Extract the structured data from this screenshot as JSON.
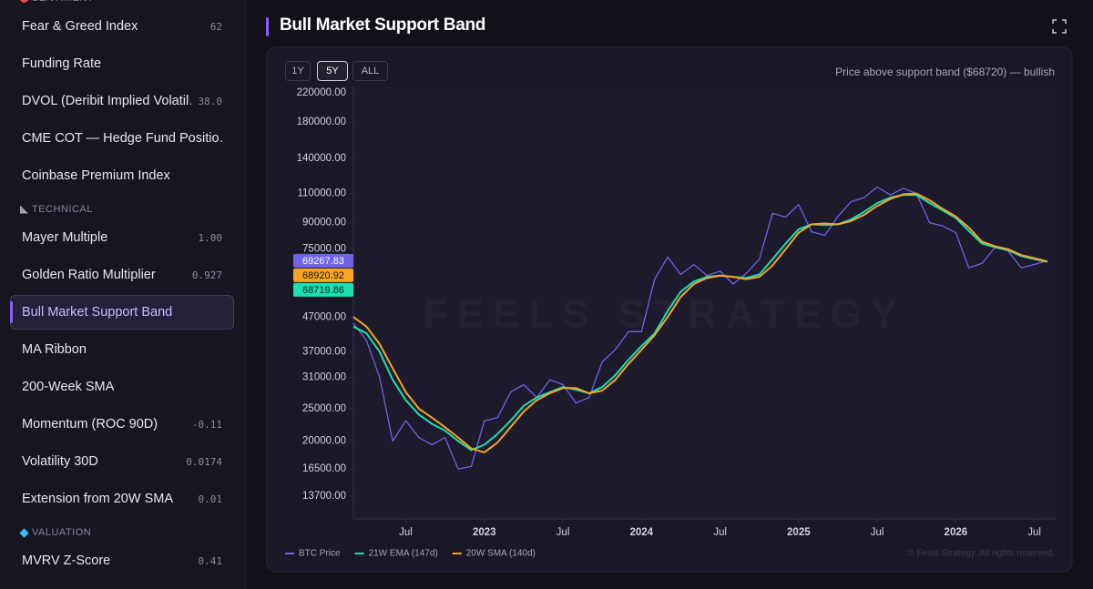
{
  "sidebar": {
    "sections": [
      {
        "title": "SENTIMENT",
        "items": [
          {
            "label": "Fear & Greed Index",
            "value": "62"
          },
          {
            "label": "Funding Rate"
          },
          {
            "label": "DVOL (Deribit Implied Volatil…",
            "value": "38.0"
          },
          {
            "label": "CME COT — Hedge Fund Positio…"
          },
          {
            "label": "Coinbase Premium Index"
          }
        ]
      },
      {
        "title": "TECHNICAL",
        "items": [
          {
            "label": "Mayer Multiple",
            "value": "1.00"
          },
          {
            "label": "Golden Ratio Multiplier",
            "value": "0.927"
          },
          {
            "label": "Bull Market Support Band",
            "active": true
          },
          {
            "label": "MA Ribbon"
          },
          {
            "label": "200-Week SMA"
          },
          {
            "label": "Momentum (ROC 90D)",
            "value": "-0.11"
          },
          {
            "label": "Volatility 30D",
            "value": "0.0174"
          },
          {
            "label": "Extension from 20W SMA",
            "value": "0.01"
          }
        ]
      },
      {
        "title": "VALUATION",
        "items": [
          {
            "label": "MVRV Z-Score",
            "value": "0.41"
          }
        ]
      }
    ]
  },
  "header": {
    "title": "Bull Market Support Band"
  },
  "controls": {
    "ranges": [
      "1Y",
      "5Y",
      "ALL"
    ],
    "selected": "5Y",
    "status": "Price above support band ($68720) — bullish"
  },
  "chart_data": {
    "type": "line",
    "yscale": "log",
    "watermark": "FEELS STRATEGY",
    "footer": "© Feels Strategy. All rights reserved.",
    "x": [
      "2022-03",
      "2022-04",
      "2022-05",
      "2022-06",
      "2022-07",
      "2022-08",
      "2022-09",
      "2022-10",
      "2022-11",
      "2022-12",
      "2023-01",
      "2023-02",
      "2023-03",
      "2023-04",
      "2023-05",
      "2023-06",
      "2023-07",
      "2023-08",
      "2023-09",
      "2023-10",
      "2023-11",
      "2023-12",
      "2024-01",
      "2024-02",
      "2024-03",
      "2024-04",
      "2024-05",
      "2024-06",
      "2024-07",
      "2024-08",
      "2024-09",
      "2024-10",
      "2024-11",
      "2024-12",
      "2025-01",
      "2025-02",
      "2025-03",
      "2025-04",
      "2025-05",
      "2025-06",
      "2025-07",
      "2025-08",
      "2025-09",
      "2025-10",
      "2025-11",
      "2025-12",
      "2026-01",
      "2026-02",
      "2026-03",
      "2026-04",
      "2026-05",
      "2026-06",
      "2026-07",
      "2026-08"
    ],
    "xlim": [
      "2022-03",
      "2026-08"
    ],
    "xticks": [
      {
        "value": "2022-07",
        "label": "Jul"
      },
      {
        "value": "2023-01",
        "label": "2023"
      },
      {
        "value": "2023-07",
        "label": "Jul"
      },
      {
        "value": "2024-01",
        "label": "2024"
      },
      {
        "value": "2024-07",
        "label": "Jul"
      },
      {
        "value": "2025-01",
        "label": "2025"
      },
      {
        "value": "2025-07",
        "label": "Jul"
      },
      {
        "value": "2026-01",
        "label": "2026"
      },
      {
        "value": "2026-07",
        "label": "Jul"
      }
    ],
    "ylim": [
      11700,
      230000
    ],
    "yticks": [
      {
        "value": 13700,
        "label": "13700.00"
      },
      {
        "value": 16500,
        "label": "16500.00"
      },
      {
        "value": 20000,
        "label": "20000.00"
      },
      {
        "value": 25000,
        "label": "25000.00"
      },
      {
        "value": 31000,
        "label": "31000.00"
      },
      {
        "value": 37000,
        "label": "37000.00"
      },
      {
        "value": 47000,
        "label": "47000.00"
      },
      {
        "value": 75000,
        "label": "75000.00"
      },
      {
        "value": 90000,
        "label": "90000.00"
      },
      {
        "value": 110000,
        "label": "110000.00"
      },
      {
        "value": 140000,
        "label": "140000.00"
      },
      {
        "value": 180000,
        "label": "180000.00"
      },
      {
        "value": 220000,
        "label": "220000.00"
      }
    ],
    "series": [
      {
        "name": "BTC Price",
        "color": "#6f63e8",
        "badge_text": "#ffffff",
        "values": [
          45000,
          40000,
          31000,
          20000,
          23000,
          20500,
          19500,
          20500,
          16500,
          16800,
          23000,
          23500,
          28000,
          29500,
          27000,
          30500,
          29500,
          26000,
          27000,
          34500,
          37500,
          42500,
          42500,
          61000,
          71000,
          63000,
          67500,
          62500,
          64500,
          59000,
          63500,
          70000,
          96000,
          93500,
          102000,
          84500,
          82500,
          94000,
          104000,
          107000,
          115000,
          109000,
          114000,
          110000,
          90000,
          88000,
          84000,
          66000,
          68000,
          76000,
          74000,
          66000,
          67500,
          69267.83
        ]
      },
      {
        "name": "21W EMA (147d)",
        "color": "#19dfb2",
        "badge_text": "#0d1a16",
        "values": [
          44000,
          42000,
          37000,
          30500,
          26500,
          24000,
          22500,
          21500,
          20000,
          18800,
          19500,
          21000,
          23000,
          25500,
          27000,
          28000,
          29000,
          28500,
          27800,
          29000,
          31500,
          35000,
          38500,
          42000,
          49000,
          56000,
          60000,
          62000,
          62500,
          62000,
          61500,
          63000,
          70000,
          78000,
          86000,
          89000,
          88500,
          89000,
          92000,
          97000,
          103000,
          107000,
          109000,
          109000,
          103000,
          98000,
          93000,
          85000,
          78000,
          76000,
          74500,
          71500,
          70000,
          68719.86
        ]
      },
      {
        "name": "20W SMA (140d)",
        "color": "#f5a524",
        "badge_text": "#1c1405",
        "values": [
          47000,
          44000,
          39000,
          33000,
          28000,
          25000,
          23500,
          22000,
          20500,
          19000,
          18500,
          19800,
          22000,
          24500,
          26500,
          27800,
          28800,
          28800,
          27800,
          28300,
          30500,
          34000,
          37500,
          41500,
          47000,
          54000,
          59000,
          61500,
          62500,
          62000,
          61000,
          62000,
          67000,
          75000,
          84000,
          89000,
          89500,
          89000,
          91000,
          95000,
          101000,
          106000,
          109500,
          110000,
          105000,
          99000,
          94000,
          87000,
          79000,
          76500,
          75000,
          72000,
          70500,
          68920.92
        ]
      }
    ]
  }
}
